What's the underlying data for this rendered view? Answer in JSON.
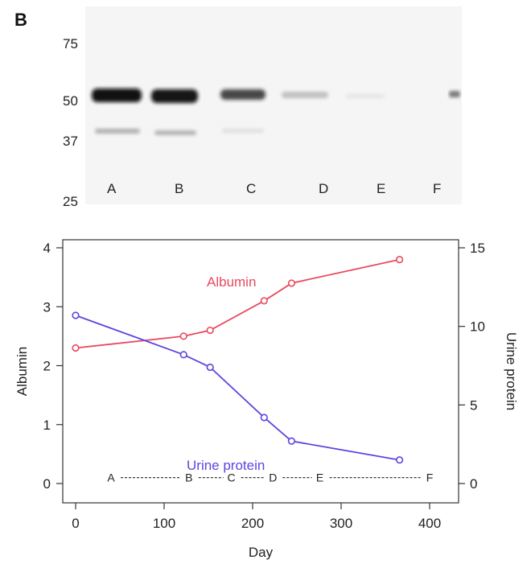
{
  "panel_label": "B",
  "blot": {
    "markers": [
      "75",
      "50",
      "37",
      "25"
    ],
    "lanes": [
      "A",
      "B",
      "C",
      "D",
      "E",
      "F"
    ],
    "band_colors": {
      "main": "#111111",
      "secondary": "#8a8a8a"
    }
  },
  "chart_data": {
    "type": "line",
    "xlabel": "Day",
    "ylabel_left": "Albumin",
    "ylabel_right": "Urine protein",
    "xlim": [
      0,
      400
    ],
    "ylim_left": [
      0,
      4
    ],
    "ylim_right": [
      0,
      15
    ],
    "xticks": [
      0,
      100,
      200,
      300,
      400
    ],
    "yticks_left": [
      0,
      1,
      2,
      3,
      4
    ],
    "yticks_right": [
      0,
      5,
      10,
      15
    ],
    "series": [
      {
        "name": "Albumin",
        "axis": "left",
        "color": "#e8495f",
        "x": [
          0,
          122,
          152,
          213,
          244,
          366
        ],
        "y": [
          2.3,
          2.5,
          2.6,
          3.1,
          3.4,
          3.8
        ]
      },
      {
        "name": "Urine protein",
        "axis": "right",
        "color": "#5a46e0",
        "x": [
          0,
          122,
          152,
          213,
          244,
          366
        ],
        "y": [
          10.7,
          8.2,
          7.4,
          4.2,
          2.7,
          1.5
        ]
      }
    ],
    "timeline": {
      "labels": [
        "A",
        "B",
        "C",
        "D",
        "E",
        "F"
      ],
      "x": [
        40,
        128,
        176,
        223,
        276,
        400
      ],
      "y_left": 0.1
    }
  }
}
